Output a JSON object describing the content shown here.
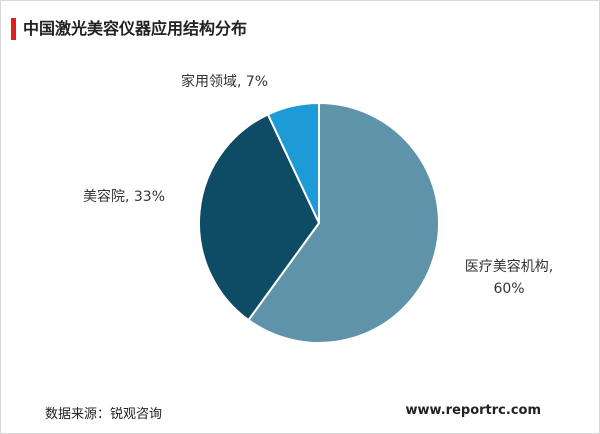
{
  "chart_data": {
    "type": "pie",
    "title": "中国激光美容仪器应用结构分布",
    "values": [
      60,
      33,
      7
    ],
    "value_labels": [
      "医疗美容机构, 60%",
      "美容院, 33%",
      "家用领域, 7%"
    ],
    "colors": [
      "#5f93aa",
      "#0e4b64",
      "#1c9bd7"
    ],
    "source": "数据来源：锐观咨询",
    "website": "www.reportrc.com"
  }
}
